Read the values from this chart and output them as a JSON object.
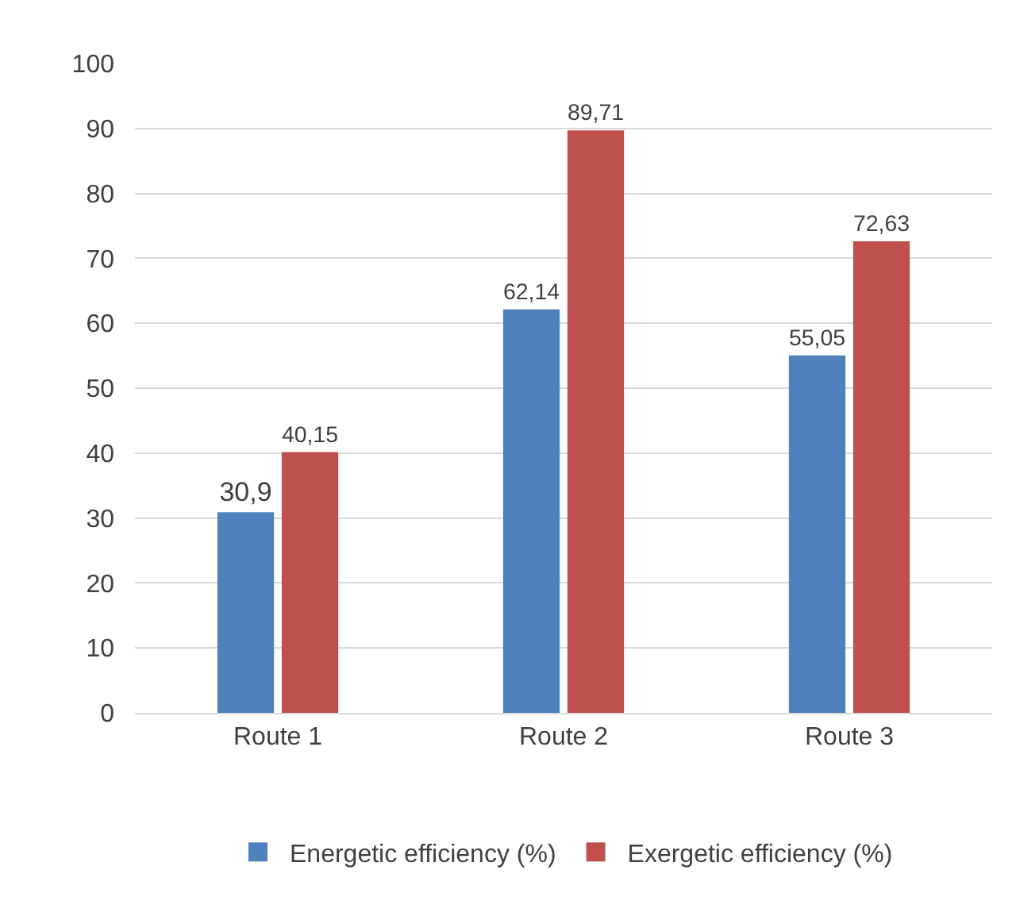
{
  "chart_data": {
    "type": "bar",
    "categories": [
      "Route 1",
      "Route 2",
      "Route 3"
    ],
    "series": [
      {
        "name": "Energetic efficiency (%)",
        "color": "#4f81bd",
        "values": [
          30.9,
          62.14,
          55.05
        ],
        "value_labels": [
          "30,9",
          "62,14",
          "55,05"
        ]
      },
      {
        "name": "Exergetic efficiency (%)",
        "color": "#c0504d",
        "values": [
          40.15,
          89.71,
          72.63
        ],
        "value_labels": [
          "40,15",
          "89,71",
          "72,63"
        ]
      }
    ],
    "ylim": [
      0,
      100
    ],
    "yticks": [
      0,
      10,
      20,
      30,
      40,
      50,
      60,
      70,
      80,
      90,
      100
    ],
    "grid": "y",
    "legend": "bottom"
  }
}
